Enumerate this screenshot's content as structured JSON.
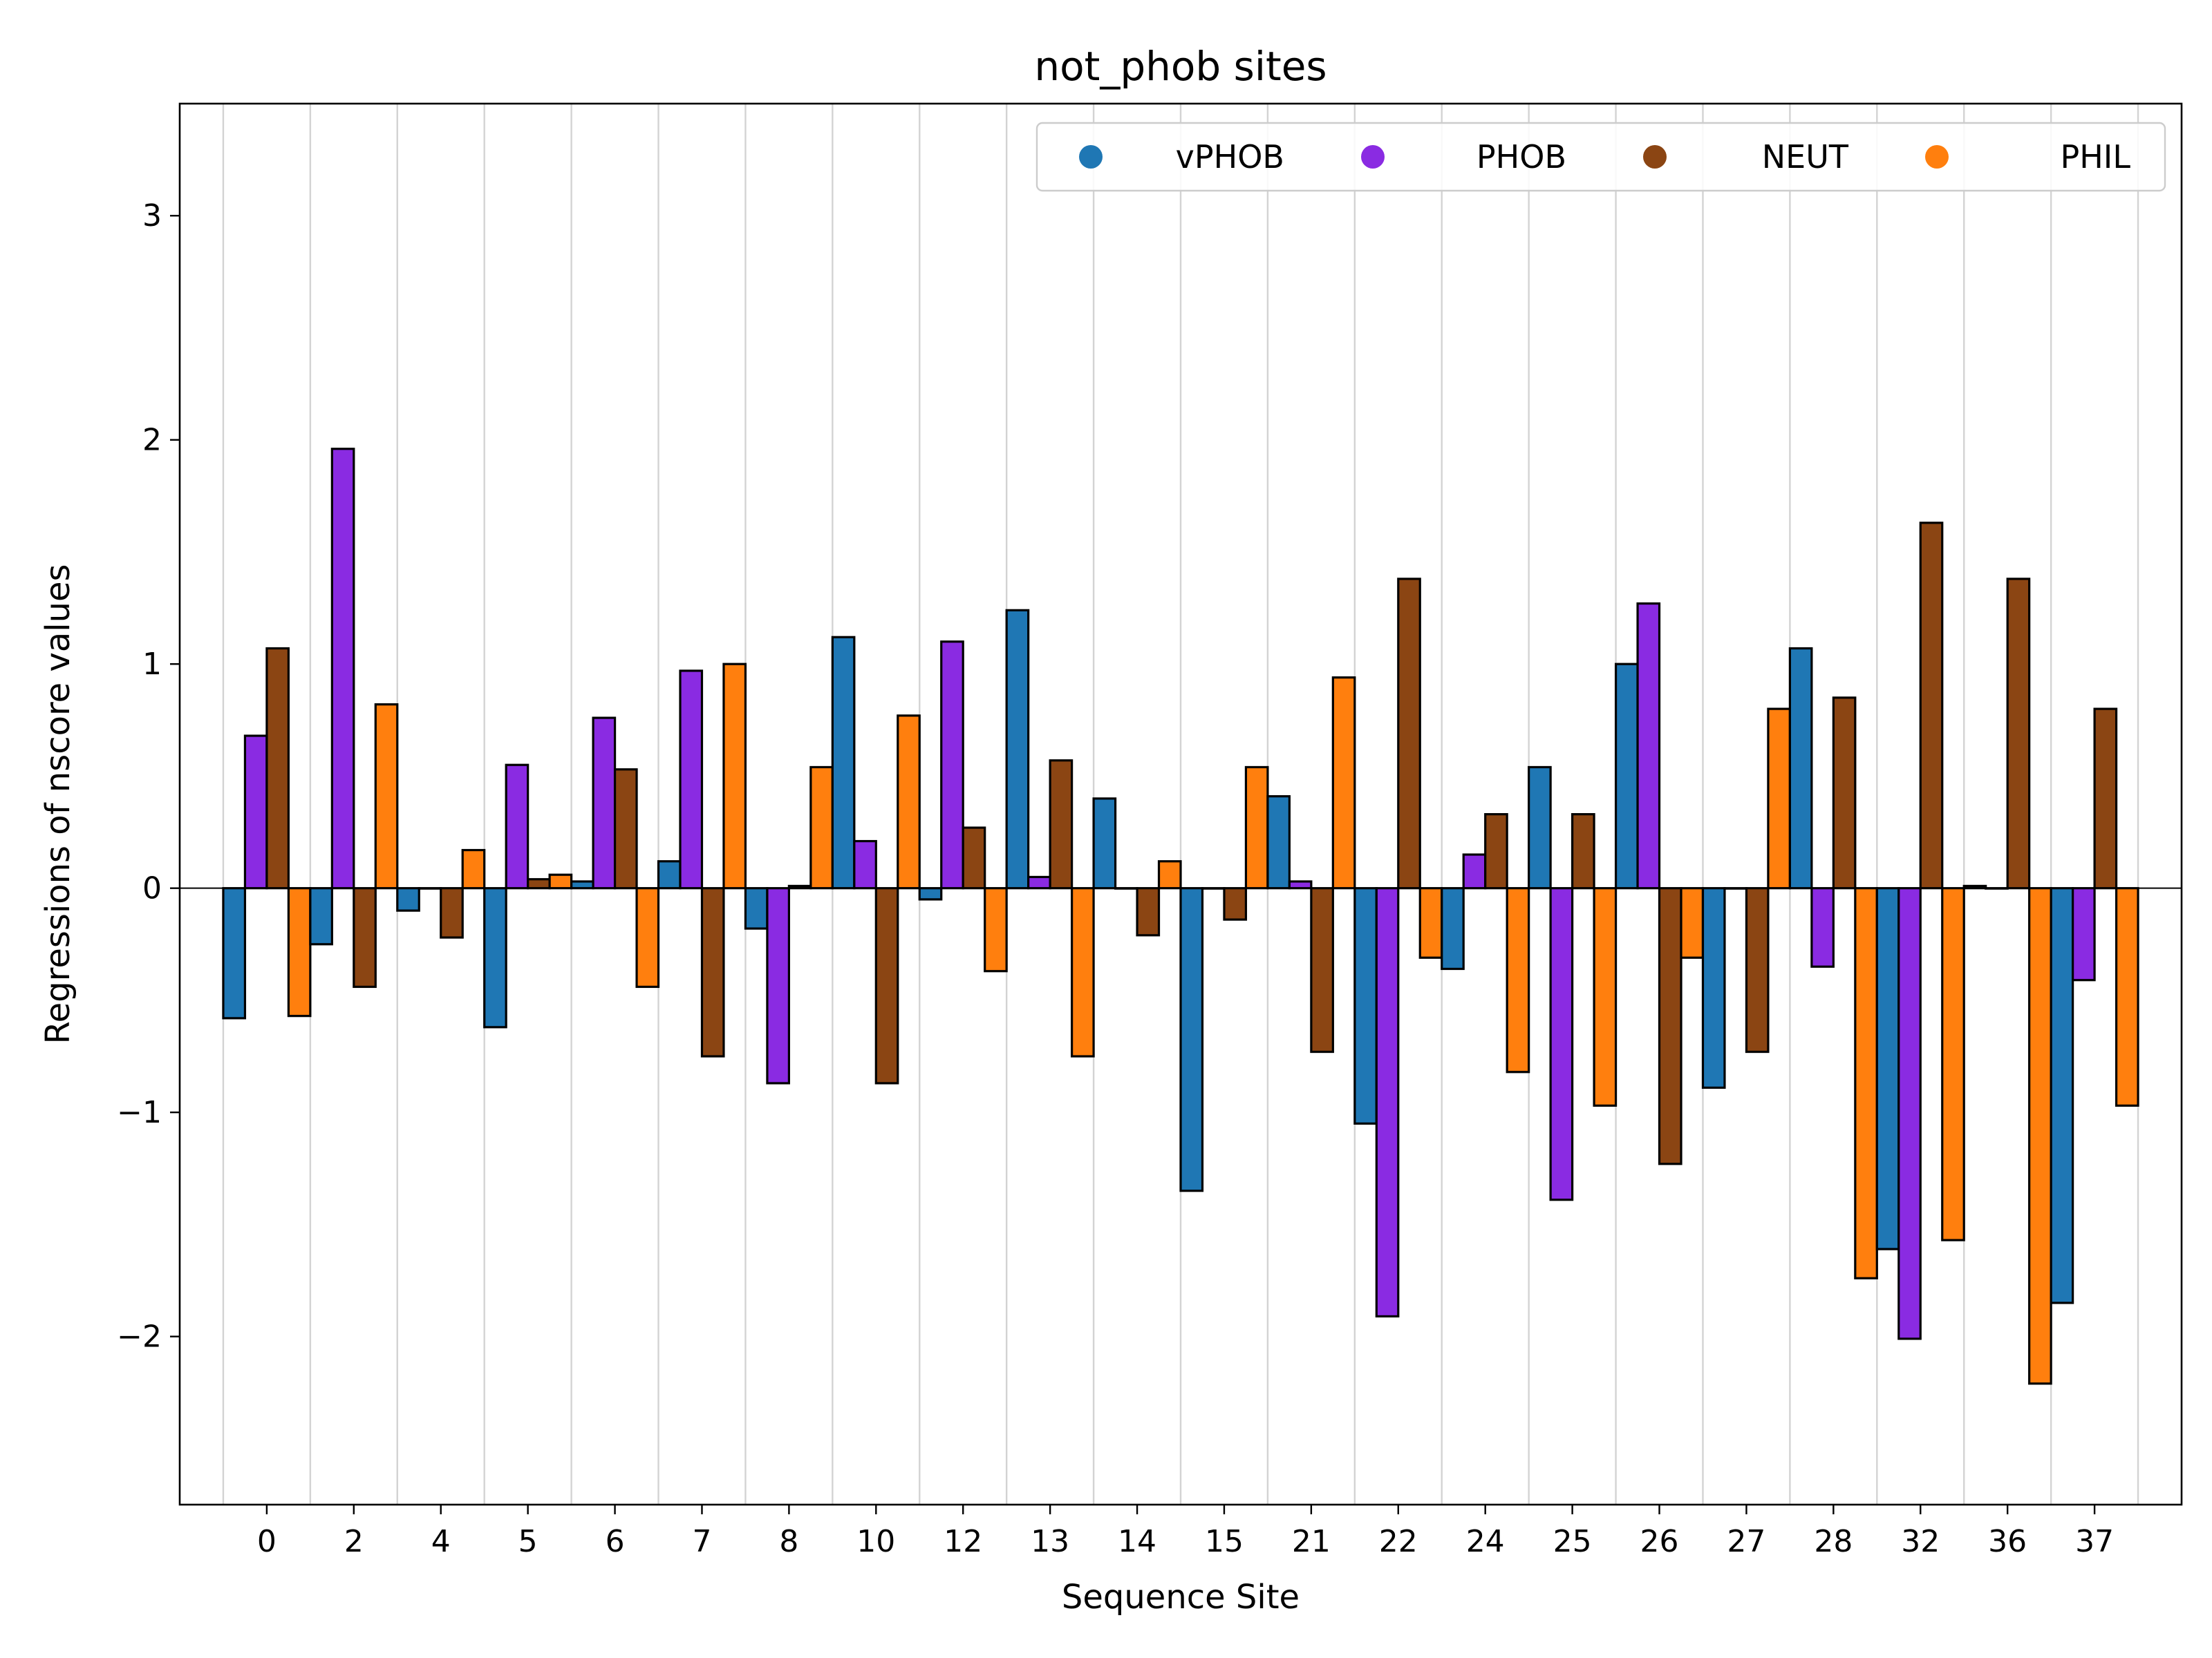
{
  "chart_data": {
    "type": "bar",
    "title": "not_phob sites",
    "xlabel": "Sequence Site",
    "ylabel": "Regressions of nscore values",
    "ylim": [
      -2.75,
      3.5
    ],
    "yticks": [
      -2,
      -1,
      0,
      1,
      2,
      3
    ],
    "ytick_labels": [
      "−2",
      "−1",
      "0",
      "1",
      "2",
      "3"
    ],
    "grid": "vertical",
    "zero_line": true,
    "legend_position": "top-right",
    "categories": [
      "0",
      "2",
      "4",
      "5",
      "6",
      "7",
      "8",
      "10",
      "12",
      "13",
      "14",
      "15",
      "21",
      "22",
      "24",
      "25",
      "26",
      "27",
      "28",
      "32",
      "36",
      "37"
    ],
    "series": [
      {
        "name": "vPHOB",
        "color": "#1f77b4",
        "values": [
          -0.58,
          -0.25,
          -0.1,
          -0.62,
          0.03,
          0.12,
          -0.18,
          1.12,
          -0.05,
          1.24,
          0.4,
          -1.35,
          0.41,
          -1.05,
          -0.36,
          0.54,
          1.0,
          -0.89,
          1.07,
          -1.61,
          0.01,
          -1.85
        ]
      },
      {
        "name": "PHOB",
        "color": "#8a2be2",
        "values": [
          0.68,
          1.96,
          0.0,
          0.55,
          0.76,
          0.97,
          -0.87,
          0.21,
          1.1,
          0.05,
          0.0,
          0.0,
          0.03,
          -1.91,
          0.15,
          -1.39,
          1.27,
          0.0,
          -0.35,
          -2.01,
          0.0,
          -0.41
        ]
      },
      {
        "name": "NEUT",
        "color": "#8b4513",
        "values": [
          1.07,
          -0.44,
          -0.22,
          0.04,
          0.53,
          -0.75,
          0.01,
          -0.87,
          0.27,
          0.57,
          -0.21,
          -0.14,
          -0.73,
          1.38,
          0.33,
          0.33,
          -1.23,
          -0.73,
          0.85,
          1.63,
          1.38,
          0.8
        ]
      },
      {
        "name": "PHIL",
        "color": "#ff7f0e",
        "values": [
          -0.57,
          0.82,
          0.17,
          0.06,
          -0.44,
          1.0,
          0.54,
          0.77,
          -0.37,
          -0.75,
          0.12,
          0.54,
          0.94,
          -0.31,
          -0.82,
          -0.97,
          -0.31,
          0.8,
          -1.74,
          -1.57,
          -2.21,
          -0.97
        ]
      }
    ]
  }
}
